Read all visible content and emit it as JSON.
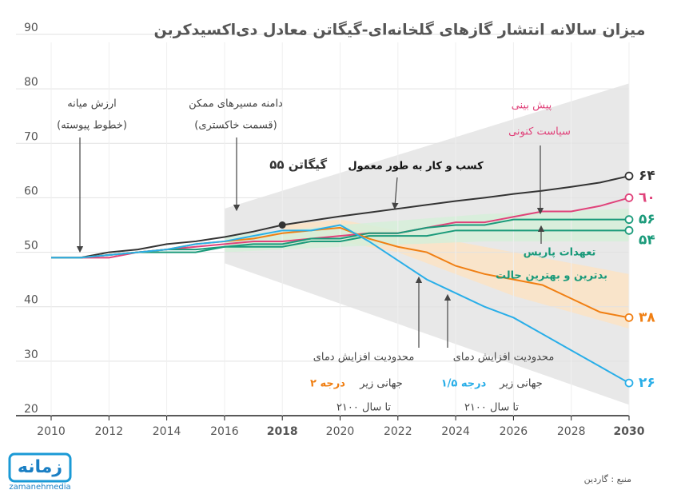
{
  "chart_data": {
    "type": "line",
    "title": "میزان سالانه انتشار گازهای گلخانه‌ای-گیگاتن معادل دی‌اکسیدکربن",
    "x": [
      2010,
      2011,
      2012,
      2013,
      2014,
      2015,
      2016,
      2017,
      2018,
      2019,
      2020,
      2021,
      2022,
      2023,
      2024,
      2025,
      2026,
      2027,
      2028,
      2029,
      2030
    ],
    "xlim": [
      2010,
      2030
    ],
    "xticks": [
      2010,
      2012,
      2014,
      2016,
      2018,
      2020,
      2022,
      2024,
      2026,
      2028,
      2030
    ],
    "highlight_xticks": [
      2018,
      2030
    ],
    "ylim": [
      20,
      90
    ],
    "yticks": [
      20,
      30,
      40,
      50,
      60,
      70,
      80,
      90
    ],
    "grid": true,
    "bands": [
      {
        "color": "#e4e4e4",
        "x": [
          2016,
          2030
        ],
        "upper": [
          58,
          81
        ],
        "lower": [
          48,
          22
        ]
      },
      {
        "color": "#fbe3c4",
        "x": [
          2018,
          2020,
          2022,
          2024,
          2026,
          2028,
          2030
        ],
        "upper": [
          55,
          56,
          54,
          52,
          50,
          48,
          46
        ],
        "lower": [
          51,
          52,
          50,
          46,
          42,
          39,
          36
        ]
      },
      {
        "color": "#d6efd9",
        "x": [
          2016,
          2020,
          2025,
          2030
        ],
        "upper": [
          53,
          55,
          57,
          58
        ],
        "lower": [
          50,
          51,
          52,
          52
        ]
      }
    ],
    "series": [
      {
        "color": "#333333",
        "values": [
          49,
          49,
          50,
          50.5,
          51.5,
          52,
          52.8,
          53.8,
          55,
          55.8,
          56.6,
          57.3,
          58,
          58.7,
          59.4,
          60,
          60.7,
          61.3,
          62,
          62.8,
          64
        ],
        "value_labels": [
          null,
          null,
          null,
          null,
          null,
          null,
          null,
          null,
          "۵۵ گیگاتن",
          null,
          null,
          null,
          null,
          null,
          null,
          null,
          null,
          null,
          null,
          null,
          "۶۴"
        ]
      },
      {
        "color": "#e0427a",
        "values": [
          49,
          49,
          49,
          50,
          50.5,
          51,
          51.5,
          52,
          52,
          52.5,
          53,
          53.5,
          53.5,
          54.5,
          55.5,
          55.5,
          56.5,
          57.5,
          57.5,
          58.5,
          60
        ],
        "value_labels": [
          null,
          null,
          null,
          null,
          null,
          null,
          null,
          null,
          null,
          null,
          null,
          null,
          null,
          null,
          null,
          null,
          null,
          null,
          null,
          null,
          "٦٠"
        ]
      },
      {
        "color": "#1a9a7a",
        "values": [
          49,
          49,
          49.5,
          50,
          50.5,
          50.5,
          51,
          51.5,
          51.5,
          52.5,
          52.5,
          53.5,
          53.5,
          54.5,
          55,
          55,
          56,
          56,
          56,
          56,
          56
        ],
        "value_labels": [
          null,
          null,
          null,
          null,
          null,
          null,
          null,
          null,
          null,
          null,
          null,
          null,
          null,
          null,
          null,
          null,
          null,
          null,
          null,
          null,
          "۵۶"
        ]
      },
      {
        "color": "#1a9a7a",
        "values": [
          49,
          49,
          49.5,
          50,
          50,
          50,
          51,
          51,
          51,
          52,
          52,
          53,
          53,
          53,
          54,
          54,
          54,
          54,
          54,
          54,
          54
        ],
        "value_labels": [
          null,
          null,
          null,
          null,
          null,
          null,
          null,
          null,
          null,
          null,
          null,
          null,
          null,
          null,
          null,
          null,
          null,
          null,
          null,
          null,
          "۵۴"
        ]
      },
      {
        "color": "#f07f13",
        "values": [
          49,
          49,
          49.5,
          50,
          50.5,
          51.5,
          52,
          52.5,
          53.5,
          54,
          54.5,
          52.5,
          51,
          50,
          47.5,
          46,
          45,
          44,
          41.5,
          39,
          38
        ],
        "value_labels": [
          null,
          null,
          null,
          null,
          null,
          null,
          null,
          null,
          null,
          null,
          null,
          null,
          null,
          null,
          null,
          null,
          null,
          null,
          null,
          null,
          "۳۸"
        ]
      },
      {
        "color": "#29aee8",
        "values": [
          49,
          49,
          49.5,
          50,
          50.5,
          51.5,
          52,
          53,
          54,
          54,
          55,
          52,
          48.5,
          45,
          42.5,
          40,
          38,
          35,
          32,
          29,
          26
        ],
        "value_labels": [
          null,
          null,
          null,
          null,
          null,
          null,
          null,
          null,
          null,
          null,
          null,
          null,
          null,
          null,
          null,
          null,
          null,
          null,
          null,
          null,
          "۲۶"
        ]
      }
    ],
    "annotations": [
      {
        "text": "ارزش میانه",
        "color": "#444444"
      },
      {
        "text": "(خطوط پیوسته)",
        "color": "#444444"
      },
      {
        "text": "دامنه مسیرهای ممکن",
        "color": "#444444"
      },
      {
        "text": "(قسمت خاکستری)",
        "color": "#444444"
      },
      {
        "text": "پیش بینی",
        "color": "#e0427a"
      },
      {
        "text": "سیاست کنونی",
        "color": "#e0427a"
      },
      {
        "text": "کسب و کار به طور معمول",
        "color": "#111111"
      },
      {
        "text": "تعهدات پاریس",
        "color": "#1a9a7a"
      },
      {
        "text": "بدترین و بهترین حالت",
        "color": "#1a9a7a"
      },
      {
        "text": "محدودیت افزایش دمای",
        "color": "#444444"
      },
      {
        "text": "جهانی زیر",
        "color": "#444444"
      },
      {
        "text": "۲ درجه",
        "color": "#f07f13"
      },
      {
        "text": "تا سال ۲۱۰۰",
        "color": "#444444"
      },
      {
        "text": "محدودیت افزایش دمای",
        "color": "#444444"
      },
      {
        "text": "جهانی زیر",
        "color": "#444444"
      },
      {
        "text": "۱/۵ درجه",
        "color": "#29aee8"
      },
      {
        "text": "تا سال ۲۱۰۰",
        "color": "#444444"
      }
    ],
    "source": "منبع : گاردین",
    "logo": {
      "text": "زمانه",
      "subtext": "zamanehmedia"
    }
  }
}
